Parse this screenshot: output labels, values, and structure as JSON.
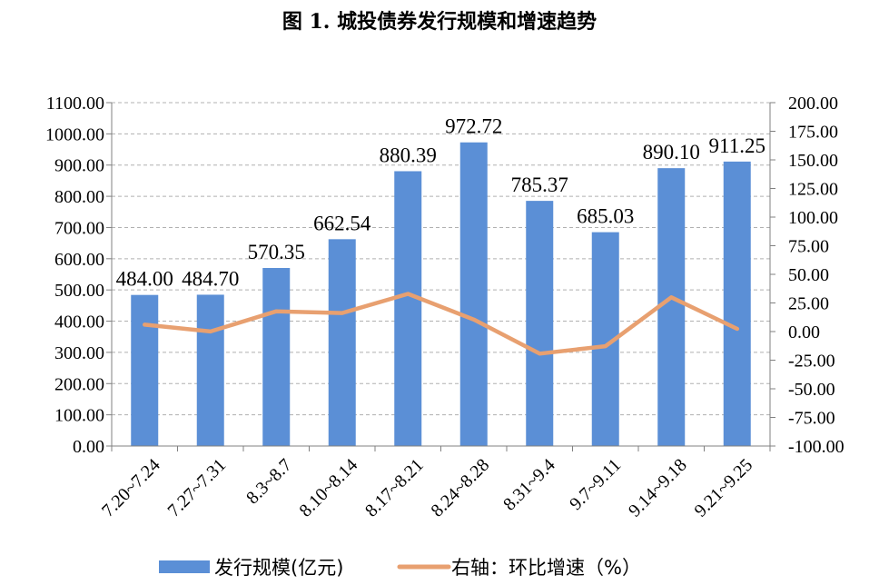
{
  "chart_data": {
    "type": "bar",
    "title": "图 1.  城投债券发行规模和增速趋势",
    "categories": [
      "7.20~7.24",
      "7.27~7.31",
      "8.3~8.7",
      "8.10~8.14",
      "8.17~8.21",
      "8.24~8.28",
      "8.31~9.4",
      "9.7~9.11",
      "9.14~9.18",
      "9.21~9.25"
    ],
    "series": [
      {
        "name": "发行规模(亿元)",
        "type": "bar",
        "axis": "left",
        "color": "#5B8FD6",
        "values": [
          484.0,
          484.7,
          570.35,
          662.54,
          880.39,
          972.72,
          785.37,
          685.03,
          890.1,
          911.25
        ],
        "labels": [
          "484.00",
          "484.70",
          "570.35",
          "662.54",
          "880.39",
          "972.72",
          "785.37",
          "685.03",
          "890.10",
          "911.25"
        ]
      },
      {
        "name": "右轴：环比增速（%）",
        "type": "line",
        "axis": "right",
        "color": "#E8A070",
        "values": [
          6.0,
          0.1,
          17.7,
          16.2,
          32.9,
          10.5,
          -19.3,
          -12.8,
          29.9,
          2.4
        ]
      }
    ],
    "left_axis": {
      "ylim": [
        0,
        1100
      ],
      "ticks": [
        "0.00",
        "100.00",
        "200.00",
        "300.00",
        "400.00",
        "500.00",
        "600.00",
        "700.00",
        "800.00",
        "900.00",
        "1000.00",
        "1100.00"
      ]
    },
    "right_axis": {
      "ylim": [
        -100,
        200
      ],
      "ticks": [
        "-100.00",
        "-75.00",
        "-50.00",
        "-25.00",
        "0.00",
        "25.00",
        "50.00",
        "75.00",
        "100.00",
        "125.00",
        "150.00",
        "175.00",
        "200.00"
      ]
    },
    "grid": true,
    "legend_position": "bottom"
  }
}
